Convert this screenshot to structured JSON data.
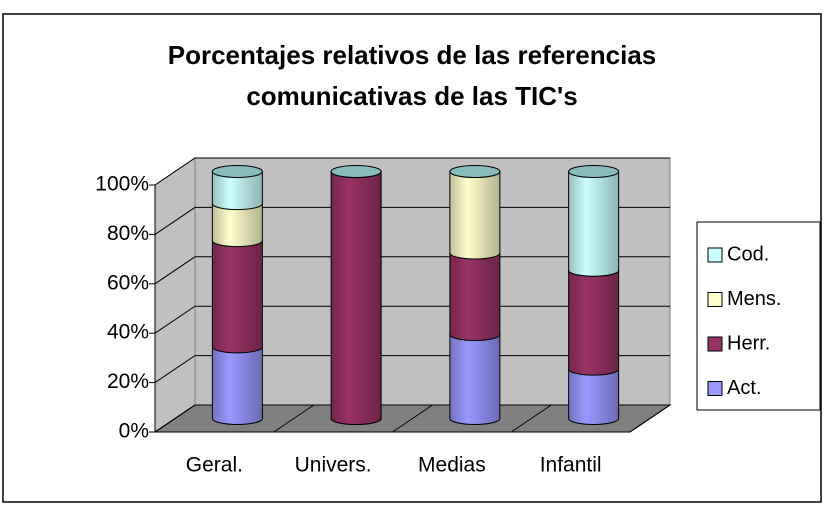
{
  "chart_data": {
    "type": "bar",
    "stacked": true,
    "title": [
      "Porcentajes relativos de las referencias",
      "comunicativas de las TIC's"
    ],
    "categories": [
      "Geral.",
      "Univers.",
      "Medias",
      "Infantil"
    ],
    "series": [
      {
        "name": "Act.",
        "color": "#9999ff",
        "values": [
          29,
          0,
          34,
          20
        ]
      },
      {
        "name": "Herr.",
        "color": "#993366",
        "values": [
          43,
          100,
          33,
          40
        ]
      },
      {
        "name": "Mens.",
        "color": "#ffffcc",
        "values": [
          15,
          0,
          33,
          0
        ]
      },
      {
        "name": "Cod.",
        "color": "#ccffff",
        "values": [
          13,
          0,
          0,
          40
        ]
      }
    ],
    "ylim": [
      0,
      100
    ],
    "yticks": [
      {
        "value": 0,
        "label": "0%"
      },
      {
        "value": 20,
        "label": "20%"
      },
      {
        "value": 40,
        "label": "40%"
      },
      {
        "value": 60,
        "label": "60%"
      },
      {
        "value": 80,
        "label": "80%"
      },
      {
        "value": 100,
        "label": "100%"
      }
    ],
    "grid": true,
    "legend": "right"
  }
}
